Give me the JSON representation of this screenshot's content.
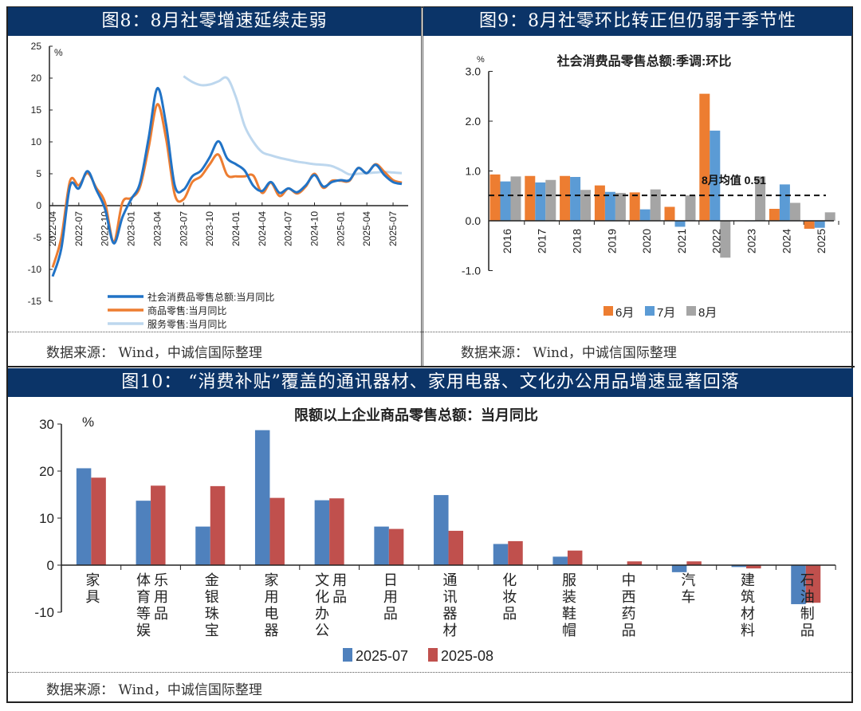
{
  "figures": {
    "fig8": {
      "title": "图8：8月社零增速延续走弱",
      "source": "数据来源： Wind，中诚信国际整理"
    },
    "fig9": {
      "title": "图9：8月社零环比转正但仍弱于季节性",
      "source": "数据来源： Wind，中诚信国际整理"
    },
    "fig10": {
      "title": "图10： “消费补贴”覆盖的通讯器材、家用电器、文化办公用品增速显著回落",
      "source": "数据来源： Wind，中诚信国际整理"
    }
  },
  "colors": {
    "header": "#0b3468",
    "total": "#2173c6",
    "goods": "#ED7D31",
    "services": "#BDD7EE",
    "jun": "#ED7D31",
    "jul": "#5B9BD5",
    "aug": "#A5A5A5",
    "s2025_07": "#4F81BD",
    "s2025_08": "#C0504D"
  },
  "chart_data": [
    {
      "type": "line",
      "title": "",
      "ylabel": "%",
      "ylim": [
        -15,
        25
      ],
      "yticks": [
        "25",
        "20",
        "15",
        "10",
        "5",
        "0",
        "-5",
        "-10",
        "-15"
      ],
      "x_start": "2022-04",
      "xticks": [
        "2022-04",
        "2022-07",
        "2022-10",
        "2023-01",
        "2023-04",
        "2023-07",
        "2023-10",
        "2024-01",
        "2024-04",
        "2024-07",
        "2024-10",
        "2025-01",
        "2025-04",
        "2025-07"
      ],
      "legend_position": "bottom-center",
      "series": [
        {
          "name": "社会消费品零售总额:当月同比",
          "start_index": 0,
          "values": [
            -11.1,
            -6.7,
            3.1,
            2.7,
            5.4,
            2.5,
            -0.5,
            -5.9,
            -1.8,
            1.0,
            3.5,
            10.6,
            18.4,
            12.7,
            3.1,
            2.5,
            4.6,
            5.5,
            7.6,
            10.1,
            7.4,
            6.5,
            5.5,
            3.1,
            2.3,
            3.7,
            2.0,
            2.7,
            2.1,
            3.2,
            4.8,
            3.0,
            3.7,
            4.0,
            4.0,
            5.9,
            5.1,
            6.4,
            4.8,
            3.7,
            3.4
          ]
        },
        {
          "name": "商品零售:当月同比",
          "start_index": 0,
          "values": [
            -9.7,
            -5.0,
            3.9,
            3.2,
            5.1,
            2.8,
            0.5,
            -5.6,
            0.5,
            1.2,
            2.9,
            9.1,
            15.9,
            10.5,
            1.7,
            1.0,
            3.7,
            4.6,
            6.5,
            8.0,
            4.8,
            4.6,
            4.6,
            4.7,
            2.0,
            3.6,
            1.5,
            2.7,
            1.9,
            3.0,
            5.0,
            2.8,
            3.9,
            3.9,
            3.9,
            5.9,
            5.1,
            6.5,
            5.3,
            4.0,
            3.6
          ]
        },
        {
          "name": "服务零售:当月同比",
          "start_index": 15,
          "values": [
            20.3,
            19.4,
            18.9,
            19.0,
            19.5,
            20.0,
            17.0,
            12.5,
            10.0,
            8.4,
            7.9,
            7.5,
            7.2,
            6.9,
            6.7,
            6.5,
            6.4,
            6.2,
            5.6,
            4.9,
            5.0,
            5.1,
            5.2,
            5.3,
            5.2,
            5.1
          ]
        }
      ]
    },
    {
      "type": "bar",
      "title": "社会消费品零售总额:季调:环比",
      "ylabel": "%",
      "ylim": [
        -1.0,
        3.0
      ],
      "yticks": [
        "3.0",
        "2.0",
        "1.0",
        "0.0",
        "-1.0"
      ],
      "categories": [
        "2016",
        "2017",
        "2018",
        "2019",
        "2020",
        "2021",
        "2022",
        "2023",
        "2024",
        "2025"
      ],
      "series": [
        {
          "name": "6月",
          "values": [
            0.93,
            0.9,
            0.9,
            0.71,
            0.57,
            0.28,
            2.55,
            0.0,
            0.24,
            -0.16
          ]
        },
        {
          "name": "7月",
          "values": [
            0.79,
            0.77,
            0.88,
            0.58,
            0.23,
            -0.12,
            1.81,
            -0.01,
            0.73,
            -0.14
          ]
        },
        {
          "name": "8月",
          "values": [
            0.89,
            0.82,
            0.62,
            0.56,
            0.63,
            0.51,
            -0.74,
            0.89,
            0.36,
            0.17
          ]
        }
      ],
      "reference_line": {
        "value": 0.51,
        "label": "8月均值 0.51"
      },
      "legend_position": "bottom-center"
    },
    {
      "type": "bar",
      "title": "限额以上企业商品零售总额：当月同比",
      "ylabel": "%",
      "ylim": [
        -10,
        30
      ],
      "yticks": [
        "30",
        "20",
        "10",
        "0",
        "-10"
      ],
      "categories": [
        "家具",
        "体育等娱乐用品",
        "金银珠宝",
        "家用电器",
        "文化办公用品",
        "日用品",
        "通讯器材",
        "化妆品",
        "服装鞋帽",
        "中西药品",
        "汽车",
        "建筑材料",
        "石油制品"
      ],
      "series": [
        {
          "name": "2025-07",
          "values": [
            20.6,
            13.7,
            8.2,
            28.7,
            13.8,
            8.2,
            14.9,
            4.5,
            1.8,
            0.0,
            -1.5,
            -0.4,
            -8.3
          ]
        },
        {
          "name": "2025-08",
          "values": [
            18.6,
            16.9,
            16.8,
            14.3,
            14.2,
            7.7,
            7.3,
            5.1,
            3.1,
            0.8,
            0.8,
            -0.7,
            -8.0
          ]
        }
      ],
      "legend_position": "bottom-center"
    }
  ]
}
